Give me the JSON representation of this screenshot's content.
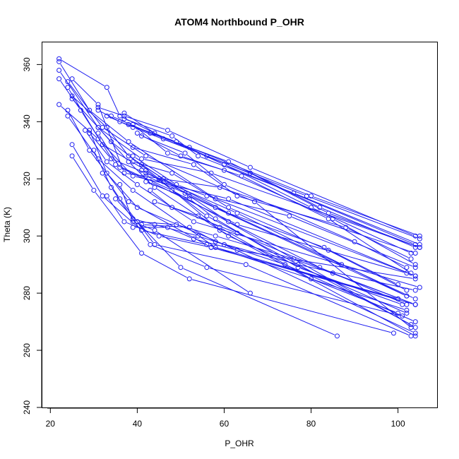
{
  "chart_data": {
    "type": "line",
    "title": "ATOM4 Northbound P_OHR",
    "xlabel": "P_OHR",
    "ylabel": "Theta (K)",
    "xlim": [
      18,
      109
    ],
    "ylim": [
      240,
      368
    ],
    "xticks": [
      20,
      40,
      60,
      80,
      100
    ],
    "yticks": [
      240,
      260,
      280,
      300,
      320,
      340,
      360
    ],
    "xtick_labels": [
      "20",
      "40",
      "60",
      "80",
      "100"
    ],
    "ytick_labels": [
      "240",
      "260",
      "280",
      "300",
      "320",
      "340",
      "360"
    ],
    "line_color": "#1c1cf0",
    "grid": false,
    "series": [
      {
        "x": [
          22,
          33,
          36,
          44,
          60,
          104
        ],
        "y": [
          362,
          352,
          342,
          336,
          325,
          297
        ]
      },
      {
        "x": [
          22,
          29,
          38,
          58,
          104
        ],
        "y": [
          361,
          344,
          333,
          313,
          286
        ]
      },
      {
        "x": [
          22,
          31,
          41,
          57,
          105
        ],
        "y": [
          358,
          338,
          327,
          322,
          296
        ]
      },
      {
        "x": [
          22,
          27,
          35,
          48,
          104
        ],
        "y": [
          355,
          344,
          325,
          316,
          268
        ]
      },
      {
        "x": [
          24,
          32,
          42,
          67,
          103
        ],
        "y": [
          354,
          338,
          328,
          312,
          268
        ]
      },
      {
        "x": [
          25,
          31,
          37,
          59,
          104
        ],
        "y": [
          355,
          346,
          322,
          317,
          294
        ]
      },
      {
        "x": [
          24,
          32,
          42,
          56,
          103
        ],
        "y": [
          352,
          332,
          323,
          307,
          269
        ]
      },
      {
        "x": [
          25,
          33,
          38,
          52,
          102
        ],
        "y": [
          349,
          338,
          328,
          314,
          279
        ]
      },
      {
        "x": [
          25,
          34,
          45,
          59,
          104
        ],
        "y": [
          348,
          333,
          320,
          302,
          265
        ]
      },
      {
        "x": [
          22,
          31,
          39,
          61,
          104
        ],
        "y": [
          346,
          334,
          321,
          313,
          286
        ]
      },
      {
        "x": [
          24,
          29,
          38,
          57,
          104
        ],
        "y": [
          344,
          330,
          312,
          296,
          276
        ]
      },
      {
        "x": [
          24,
          31,
          39,
          58,
          100
        ],
        "y": [
          342,
          327,
          316,
          296,
          278
        ]
      },
      {
        "x": [
          28,
          33,
          40,
          53,
          105
        ],
        "y": [
          337,
          326,
          318,
          305,
          282
        ]
      },
      {
        "x": [
          29,
          33,
          40,
          60,
          104
        ],
        "y": [
          337,
          322,
          310,
          297,
          266
        ]
      },
      {
        "x": [
          29,
          34,
          42,
          63,
          102
        ],
        "y": [
          336,
          327,
          322,
          308,
          279
        ]
      },
      {
        "x": [
          31,
          36,
          43,
          63,
          102
        ],
        "y": [
          336,
          324,
          319,
          304,
          287
        ]
      },
      {
        "x": [
          31,
          38,
          44,
          61,
          102
        ],
        "y": [
          338,
          326,
          317,
          300,
          273
        ]
      },
      {
        "x": [
          25,
          32,
          41,
          56,
          102
        ],
        "y": [
          332,
          314,
          302,
          297,
          274
        ]
      },
      {
        "x": [
          25,
          30,
          41,
          52,
          99
        ],
        "y": [
          328,
          316,
          294,
          285,
          266
        ]
      },
      {
        "x": [
          30,
          34,
          43,
          56,
          101
        ],
        "y": [
          330,
          317,
          297,
          289,
          272
        ]
      },
      {
        "x": [
          32,
          36,
          44,
          65,
          103
        ],
        "y": [
          322,
          313,
          297,
          290,
          265
        ]
      },
      {
        "x": [
          33,
          37,
          45,
          57,
          100
        ],
        "y": [
          314,
          305,
          300,
          296,
          278
        ]
      },
      {
        "x": [
          35,
          40,
          50,
          86
        ],
        "y": [
          313,
          305,
          289,
          265
        ]
      },
      {
        "x": [
          36,
          39,
          44,
          66
        ],
        "y": [
          318,
          305,
          302,
          280
        ]
      },
      {
        "x": [
          31,
          37,
          47,
          66,
          104
        ],
        "y": [
          345,
          342,
          337,
          324,
          300
        ]
      },
      {
        "x": [
          31,
          36,
          52,
          80,
          105
        ],
        "y": [
          344,
          340,
          331,
          314,
          300
        ]
      },
      {
        "x": [
          33,
          39,
          56,
          79,
          105
        ],
        "y": [
          342,
          338,
          328,
          314,
          299
        ]
      },
      {
        "x": [
          34,
          43,
          61,
          82,
          104
        ],
        "y": [
          342,
          336,
          326,
          310,
          296
        ]
      },
      {
        "x": [
          37,
          46,
          66,
          84,
          105
        ],
        "y": [
          343,
          334,
          322,
          308,
          296
        ]
      },
      {
        "x": [
          37,
          48,
          54,
          76,
          105
        ],
        "y": [
          341,
          335,
          328,
          315,
          297
        ]
      },
      {
        "x": [
          38,
          49,
          60,
          80,
          103
        ],
        "y": [
          339,
          333,
          325,
          310,
          294
        ]
      },
      {
        "x": [
          39,
          47,
          60,
          85,
          104
        ],
        "y": [
          339,
          329,
          323,
          306,
          290
        ]
      },
      {
        "x": [
          40,
          50,
          64,
          84,
          103
        ],
        "y": [
          336,
          328,
          321,
          306,
          287
        ]
      },
      {
        "x": [
          41,
          51,
          60,
          90,
          102
        ],
        "y": [
          335,
          329,
          318,
          298,
          289
        ]
      },
      {
        "x": [
          39,
          53,
          63,
          88,
          103
        ],
        "y": [
          331,
          325,
          314,
          303,
          292
        ]
      },
      {
        "x": [
          39,
          49,
          56,
          75,
          104
        ],
        "y": [
          328,
          318,
          314,
          307,
          289
        ]
      },
      {
        "x": [
          39,
          48,
          61,
          84,
          102
        ],
        "y": [
          326,
          322,
          310,
          295,
          281
        ]
      },
      {
        "x": [
          41,
          46,
          61,
          83,
          100
        ],
        "y": [
          325,
          320,
          308,
          296,
          283
        ]
      },
      {
        "x": [
          41,
          46,
          58,
          87,
          104
        ],
        "y": [
          323,
          319,
          310,
          290,
          278
        ]
      },
      {
        "x": [
          42,
          51,
          61,
          82,
          102
        ],
        "y": [
          321,
          315,
          305,
          289,
          276
        ]
      },
      {
        "x": [
          42,
          52,
          58,
          77,
          101
        ],
        "y": [
          319,
          313,
          306,
          289,
          276
        ]
      },
      {
        "x": [
          43,
          48,
          63,
          85,
          104
        ],
        "y": [
          316,
          310,
          301,
          287,
          276
        ]
      },
      {
        "x": [
          44,
          54,
          59,
          80,
          100
        ],
        "y": [
          312,
          307,
          303,
          285,
          273
        ]
      },
      {
        "x": [
          39,
          44,
          54,
          74,
          104
        ],
        "y": [
          306,
          304,
          300,
          290,
          270
        ]
      },
      {
        "x": [
          40,
          49,
          58,
          76,
          104
        ],
        "y": [
          305,
          304,
          300,
          292,
          276
        ]
      },
      {
        "x": [
          41,
          52,
          58,
          77,
          104
        ],
        "y": [
          304,
          303,
          298,
          290,
          281
        ]
      },
      {
        "x": [
          39,
          47,
          53,
          63,
          104
        ],
        "y": [
          303,
          303,
          299,
          295,
          285
        ]
      }
    ]
  }
}
